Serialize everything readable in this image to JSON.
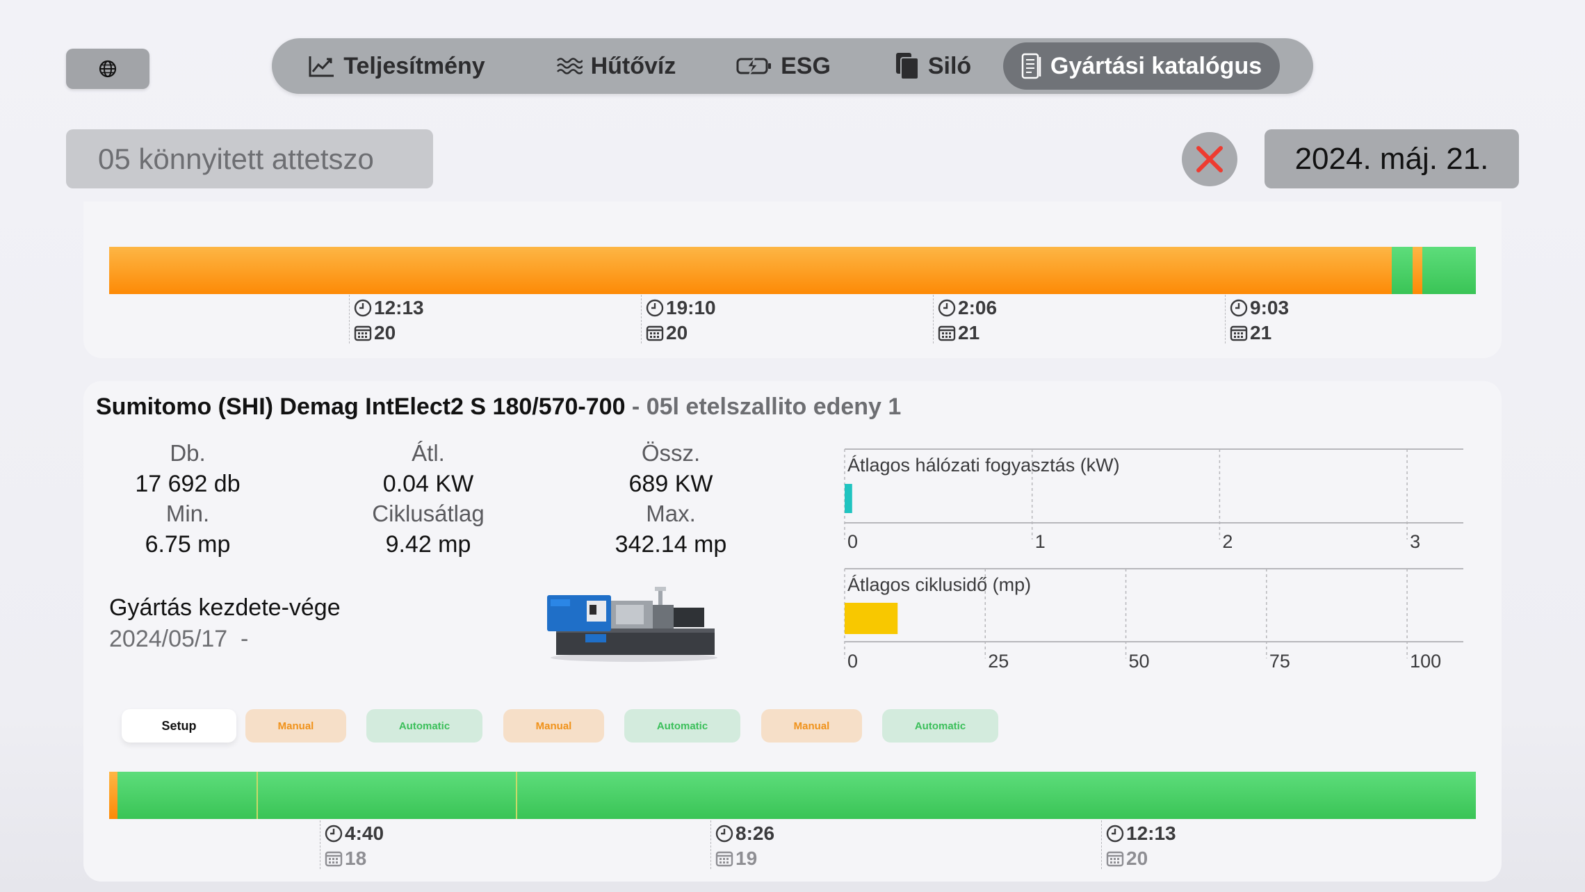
{
  "globe_icon": "globe-icon",
  "tabs": [
    {
      "label": "Teljesítmény",
      "icon": "chart-line-icon",
      "active": false
    },
    {
      "label": "Hűtővíz",
      "icon": "water-waves-icon",
      "active": false
    },
    {
      "label": "ESG",
      "icon": "battery-bolt-icon",
      "active": false
    },
    {
      "label": "Siló",
      "icon": "documents-icon",
      "active": false
    },
    {
      "label": "Gyártási katalógus",
      "icon": "catalog-icon",
      "active": true
    }
  ],
  "filter": {
    "product": "05 könnyitett attetszo",
    "clear_icon": "close-x-icon",
    "date": "2024. máj. 21."
  },
  "top_timeline": {
    "ticks": [
      {
        "time": "12:13",
        "date": "20"
      },
      {
        "time": "19:10",
        "date": "20"
      },
      {
        "time": "2:06",
        "date": "21"
      },
      {
        "time": "9:03",
        "date": "21"
      }
    ]
  },
  "machine": {
    "name": "Sumitomo (SHI) Demag IntElect2 S 180/570-700",
    "separator": " - ",
    "product": "05l etelszallito edeny 1",
    "stats": {
      "db_label": "Db.",
      "db_value": "17 692 db",
      "atl_label": "Átl.",
      "atl_value": "0.04 KW",
      "ossz_label": "Össz.",
      "ossz_value": "689 KW",
      "min_label": "Min.",
      "min_value": "6.75 mp",
      "ciklus_label": "Ciklusátlag",
      "ciklus_value": "9.42 mp",
      "max_label": "Max.",
      "max_value": "342.14 mp"
    },
    "production_range_label": "Gyártás kezdete-vége",
    "production_range_value": "2024/05/17  -"
  },
  "chart_data": [
    {
      "type": "bar",
      "title": "Átlagos hálózati fogyasztás (kW)",
      "categories": [
        ""
      ],
      "values": [
        0.04
      ],
      "xlim": [
        0,
        3.3
      ],
      "ticks": [
        "0",
        "1",
        "2",
        "3"
      ],
      "color": "#20c4c0"
    },
    {
      "type": "bar",
      "title": "Átlagos ciklusidő (mp)",
      "categories": [
        ""
      ],
      "values": [
        9.42
      ],
      "xlim": [
        0,
        110
      ],
      "ticks": [
        "0",
        "25",
        "50",
        "75",
        "100"
      ],
      "color": "#f8c800"
    }
  ],
  "modes": [
    {
      "label": "Setup",
      "kind": "setup"
    },
    {
      "label": "Manual",
      "kind": "manual"
    },
    {
      "label": "Automatic",
      "kind": "auto"
    },
    {
      "label": "Manual",
      "kind": "manual"
    },
    {
      "label": "Automatic",
      "kind": "auto"
    },
    {
      "label": "Manual",
      "kind": "manual"
    },
    {
      "label": "Automatic",
      "kind": "auto"
    }
  ],
  "bottom_timeline": {
    "ticks": [
      {
        "time": "4:40",
        "date": "18"
      },
      {
        "time": "8:26",
        "date": "19"
      },
      {
        "time": "12:13",
        "date": "20"
      }
    ]
  },
  "colors": {
    "running_orange": "#fd9a1e",
    "running_green": "#44cc63"
  }
}
